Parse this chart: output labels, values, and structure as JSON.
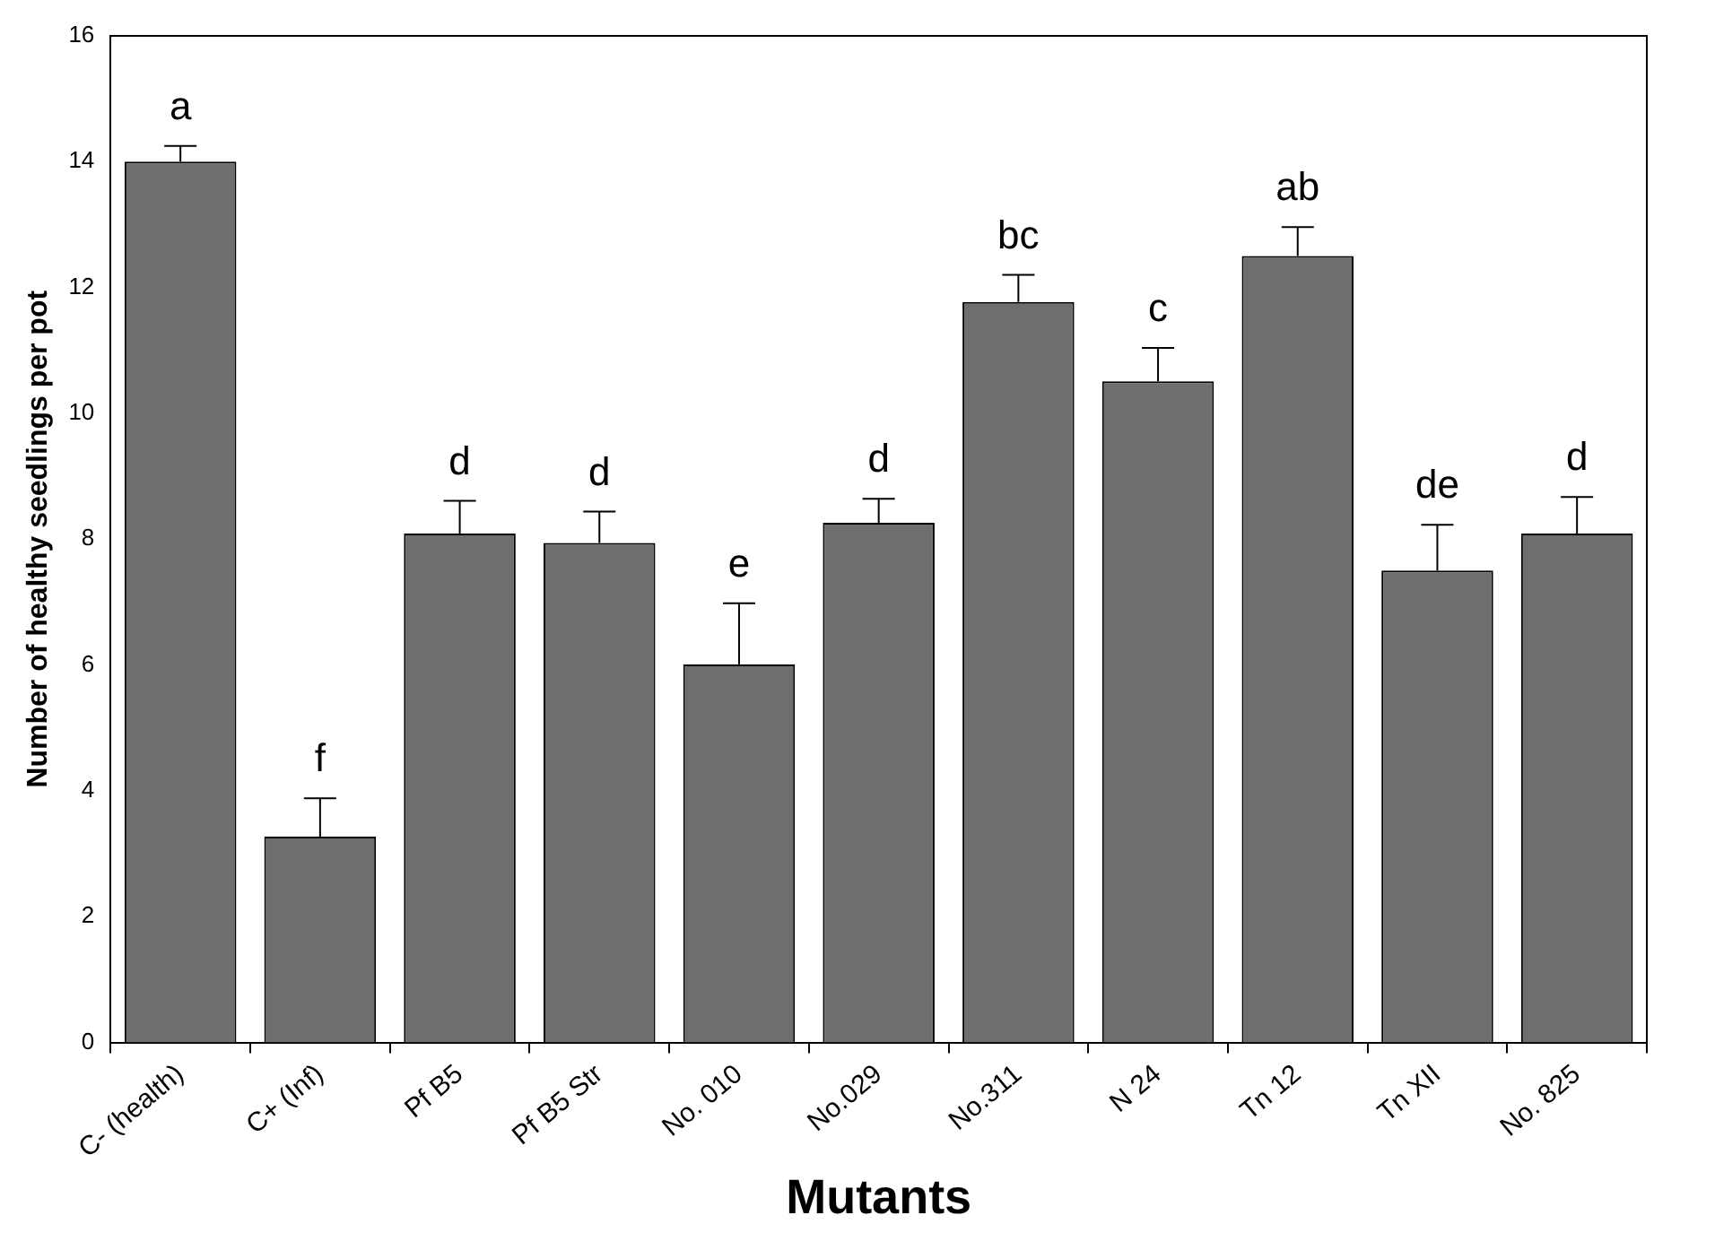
{
  "chart_data": {
    "type": "bar",
    "xlabel": "Mutants",
    "ylabel": "Number of healthy seedlings per pot",
    "categories": [
      "C- (health)",
      "C+ (Inf)",
      "Pf B5",
      "Pf B5 Str",
      "No. 010",
      "No.029",
      "No.311",
      "N 24",
      "Tn 12",
      "Tn XII",
      "No. 825"
    ],
    "values": [
      14.0,
      3.27,
      8.09,
      7.94,
      6.01,
      8.26,
      11.77,
      10.51,
      12.5,
      7.5,
      8.09
    ],
    "errors": [
      [
        14.0,
        14.25
      ],
      [
        3.27,
        3.88
      ],
      [
        8.09,
        8.61
      ],
      [
        7.94,
        8.44
      ],
      [
        6.01,
        6.98
      ],
      [
        8.26,
        8.64
      ],
      [
        11.77,
        12.2
      ],
      [
        10.51,
        11.04
      ],
      [
        12.5,
        12.96
      ],
      [
        7.5,
        8.23
      ],
      [
        8.09,
        8.67
      ]
    ],
    "color": "#6e6e6e",
    "ylim": [
      0,
      16
    ],
    "yticks": [
      0,
      2,
      4,
      6,
      8,
      10,
      12,
      14,
      16
    ],
    "annotations": [
      {
        "text": "a",
        "x": "C- (health)",
        "y": 14.25
      },
      {
        "text": "f",
        "x": "C+ (Inf)",
        "y": 3.88
      },
      {
        "text": "d",
        "x": "Pf B5",
        "y": 8.61
      },
      {
        "text": "d",
        "x": "Pf B5 Str",
        "y": 8.44
      },
      {
        "text": "e",
        "x": "No. 010",
        "y": 6.98
      },
      {
        "text": "d",
        "x": "No.029",
        "y": 8.64
      },
      {
        "text": "bc",
        "x": "No.311",
        "y": 12.2
      },
      {
        "text": "c",
        "x": "N 24",
        "y": 11.04
      },
      {
        "text": "ab",
        "x": "Tn 12",
        "y": 12.96
      },
      {
        "text": "de",
        "x": "Tn XII",
        "y": 8.23
      },
      {
        "text": "d",
        "x": "No. 825",
        "y": 8.67
      }
    ],
    "legend": false
  }
}
